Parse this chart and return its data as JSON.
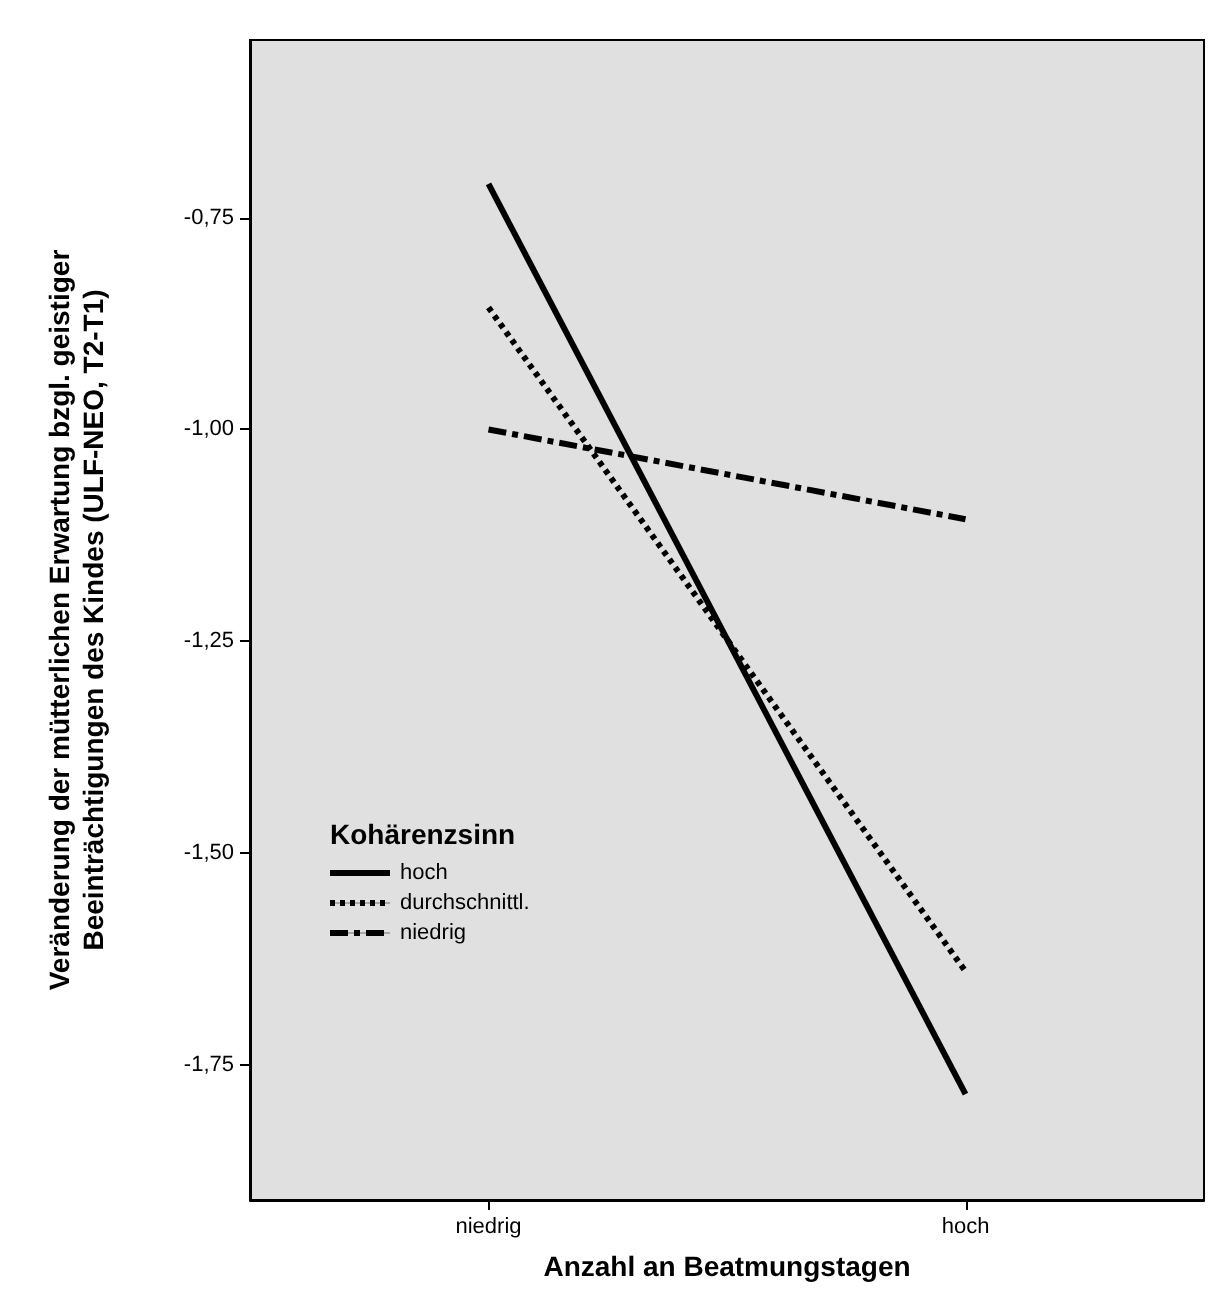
{
  "chart_data": {
    "type": "line",
    "xlabel": "Anzahl an Beatmungstagen",
    "ylabel": "Veränderung der mütterlichen Erwartung bzgl. geistiger\nBeeinträchtigungen des Kindes (ULF-NEO, T2-T1)",
    "legend_title": "Kohärenzsinn",
    "categories": [
      "niedrig",
      "hoch"
    ],
    "series": [
      {
        "name": "hoch",
        "color": "#000000",
        "line_style": "solid",
        "values": [
          -0.71,
          -1.785
        ]
      },
      {
        "name": "durchschnittl.",
        "color": "#000000",
        "line_style": "dotted",
        "values": [
          -0.856,
          -1.64
        ]
      },
      {
        "name": "niedrig",
        "color": "#000000",
        "line_style": "dashdot",
        "values": [
          -1.0,
          -1.106
        ]
      }
    ],
    "ylim": [
      -1.91,
      -0.54
    ],
    "yticks": [
      {
        "value": -0.75,
        "label": "-0,75"
      },
      {
        "value": -1.0,
        "label": "-1,00"
      },
      {
        "value": -1.25,
        "label": "-1,25"
      },
      {
        "value": -1.5,
        "label": "-1,50"
      },
      {
        "value": -1.75,
        "label": "-1,75"
      }
    ],
    "grid": false,
    "legend": "bottom left",
    "marker": "none"
  }
}
